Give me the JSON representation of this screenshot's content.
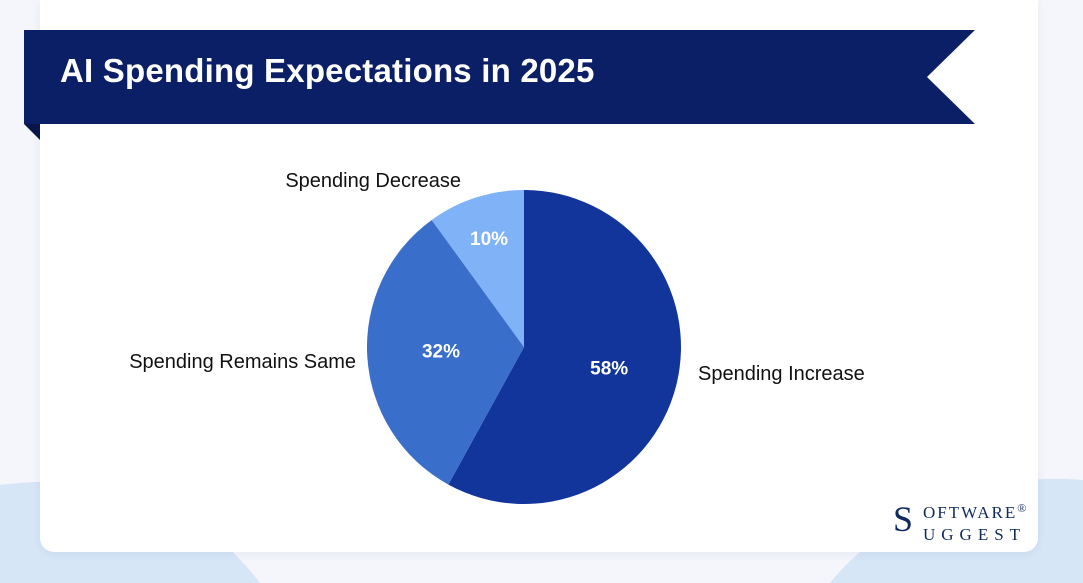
{
  "title": "AI Spending Expectations in 2025",
  "colors": {
    "banner": "#0b1f66",
    "increase": "#11359a",
    "same": "#3a6ecb",
    "decrease": "#7fb2f6",
    "background_wave": "#d6e6f7"
  },
  "chart_data": {
    "type": "pie",
    "title": "AI Spending Expectations in 2025",
    "categories": [
      "Spending Increase",
      "Spending Remains Same",
      "Spending Decrease"
    ],
    "values": [
      58,
      32,
      10
    ],
    "labels": [
      "58%",
      "32%",
      "10%"
    ],
    "start_angle_deg": 0,
    "direction": "clockwise"
  },
  "logo": {
    "initial": "S",
    "line1": "OFTWARE",
    "registered": "®",
    "line2": "UGGEST"
  }
}
